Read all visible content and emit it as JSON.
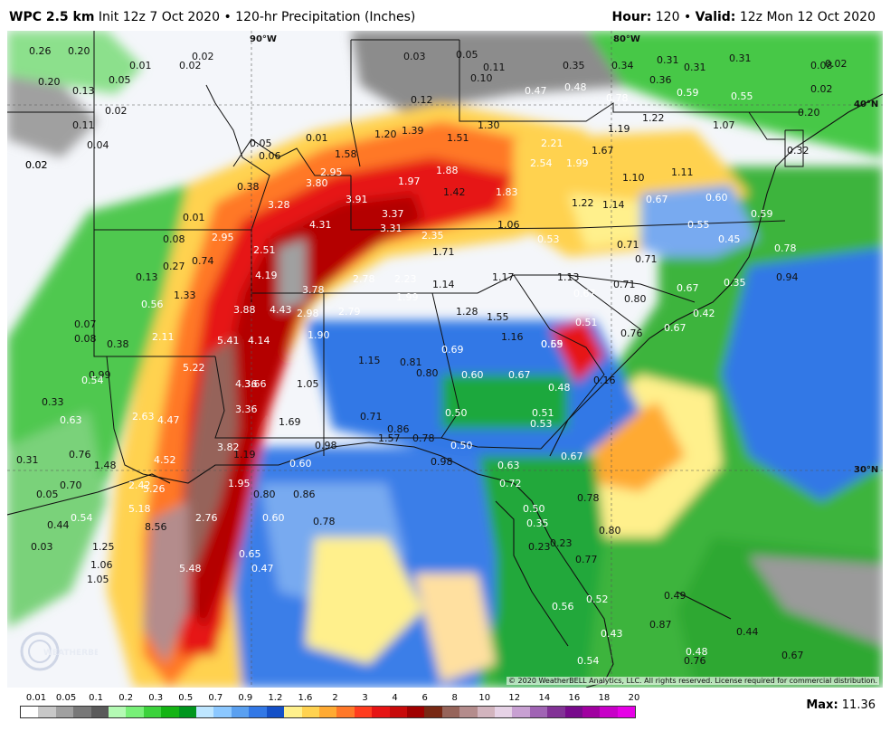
{
  "header": {
    "model": "WPC 2.5 km",
    "init": "Init 12z 7 Oct 2020",
    "product": "120-hr Precipitation (Inches)",
    "hour_label": "Hour:",
    "hour": "120",
    "valid_label": "Valid:",
    "valid": "12z Mon 12 Oct 2020"
  },
  "map": {
    "lat_lon_labels": {
      "lon90": "90°W",
      "lon80": "80°W",
      "lat40": "40°N",
      "lat30": "30°N"
    },
    "copyright": "© 2020 WeatherBELL Analytics, LLC. All rights reserved. License required for commercial distribution.",
    "logo_text": "WEATHERBELL",
    "values": [
      {
        "t": "0.26",
        "c": "k"
      },
      {
        "t": "0.20",
        "c": "k"
      },
      {
        "t": "0.01",
        "c": "k"
      },
      {
        "t": "0.02",
        "c": "k"
      },
      {
        "t": "0.02",
        "c": "k"
      },
      {
        "t": "0.20",
        "c": "k"
      },
      {
        "t": "0.13",
        "c": "k"
      },
      {
        "t": "0.05",
        "c": "k"
      },
      {
        "t": "0.03",
        "c": "k"
      },
      {
        "t": "0.05",
        "c": "k"
      },
      {
        "t": "0.11",
        "c": "k"
      },
      {
        "t": "0.10",
        "c": "k"
      },
      {
        "t": "0.35",
        "c": "k"
      },
      {
        "t": "0.34",
        "c": "k"
      },
      {
        "t": "0.31",
        "c": "k"
      },
      {
        "t": "0.31",
        "c": "k"
      },
      {
        "t": "0.31",
        "c": "k"
      },
      {
        "t": "0.08",
        "c": "k"
      },
      {
        "t": "0.02",
        "c": "k"
      },
      {
        "t": "0.02",
        "c": "k"
      },
      {
        "t": "0.11",
        "c": "k"
      },
      {
        "t": "0.04",
        "c": "k"
      },
      {
        "t": "0.02",
        "c": "k"
      },
      {
        "t": "0.12",
        "c": "k"
      },
      {
        "t": "0.47",
        "c": "w"
      },
      {
        "t": "0.48",
        "c": "w"
      },
      {
        "t": "0.78",
        "c": "w"
      },
      {
        "t": "0.36",
        "c": "k"
      },
      {
        "t": "0.59",
        "c": "w"
      },
      {
        "t": "0.55",
        "c": "w"
      },
      {
        "t": "0.20",
        "c": "k"
      },
      {
        "t": "0.02",
        "c": "k"
      },
      {
        "t": "1.30",
        "c": "k"
      },
      {
        "t": "1.22",
        "c": "k"
      },
      {
        "t": "1.07",
        "c": "k"
      },
      {
        "t": "0.01",
        "c": "k"
      },
      {
        "t": "0.05",
        "c": "k"
      },
      {
        "t": "1.20",
        "c": "k"
      },
      {
        "t": "1.39",
        "c": "k"
      },
      {
        "t": "1.51",
        "c": "k"
      },
      {
        "t": "1.19",
        "c": "k"
      },
      {
        "t": "0.32",
        "c": "k"
      },
      {
        "t": "0.06",
        "c": "k"
      },
      {
        "t": "1.58",
        "c": "k"
      },
      {
        "t": "2.21",
        "c": "w"
      },
      {
        "t": "1.67",
        "c": "k"
      },
      {
        "t": "2.54",
        "c": "w"
      },
      {
        "t": "1.99",
        "c": "w"
      },
      {
        "t": "0.02",
        "c": "k"
      },
      {
        "t": "2.95",
        "c": "w"
      },
      {
        "t": "1.88",
        "c": "w"
      },
      {
        "t": "1.11",
        "c": "k"
      },
      {
        "t": "1.10",
        "c": "k"
      },
      {
        "t": "0.38",
        "c": "k"
      },
      {
        "t": "3.80",
        "c": "w"
      },
      {
        "t": "1.97",
        "c": "w"
      },
      {
        "t": "1.42",
        "c": "k"
      },
      {
        "t": "1.83",
        "c": "w"
      },
      {
        "t": "0.67",
        "c": "w"
      },
      {
        "t": "0.60",
        "c": "w"
      },
      {
        "t": "1.22",
        "c": "k"
      },
      {
        "t": "1.14",
        "c": "k"
      },
      {
        "t": "3.28",
        "c": "w"
      },
      {
        "t": "3.91",
        "c": "w"
      },
      {
        "t": "3.37",
        "c": "w"
      },
      {
        "t": "0.59",
        "c": "w"
      },
      {
        "t": "0.01",
        "c": "k"
      },
      {
        "t": "4.31",
        "c": "w"
      },
      {
        "t": "3.31",
        "c": "w"
      },
      {
        "t": "1.06",
        "c": "k"
      },
      {
        "t": "0.55",
        "c": "w"
      },
      {
        "t": "0.08",
        "c": "k"
      },
      {
        "t": "2.95",
        "c": "w"
      },
      {
        "t": "2.35",
        "c": "w"
      },
      {
        "t": "0.53",
        "c": "w"
      },
      {
        "t": "0.45",
        "c": "w"
      },
      {
        "t": "0.71",
        "c": "k"
      },
      {
        "t": "0.61",
        "c": "w"
      },
      {
        "t": "0.78",
        "c": "w"
      },
      {
        "t": "2.51",
        "c": "w"
      },
      {
        "t": "1.71",
        "c": "k"
      },
      {
        "t": "0.71",
        "c": "k"
      },
      {
        "t": "0.27",
        "c": "k"
      },
      {
        "t": "0.74",
        "c": "k"
      },
      {
        "t": "4.19",
        "c": "w"
      },
      {
        "t": "2.78",
        "c": "w"
      },
      {
        "t": "2.23",
        "c": "w"
      },
      {
        "t": "1.17",
        "c": "k"
      },
      {
        "t": "1.13",
        "c": "k"
      },
      {
        "t": "0.94",
        "c": "k"
      },
      {
        "t": "0.13",
        "c": "k"
      },
      {
        "t": "3.78",
        "c": "w"
      },
      {
        "t": "1.14",
        "c": "k"
      },
      {
        "t": "0.71",
        "c": "k"
      },
      {
        "t": "0.35",
        "c": "w"
      },
      {
        "t": "1.33",
        "c": "k"
      },
      {
        "t": "1.99",
        "c": "w"
      },
      {
        "t": "0.67",
        "c": "w"
      },
      {
        "t": "0.80",
        "c": "k"
      },
      {
        "t": "0.67",
        "c": "w"
      },
      {
        "t": "0.56",
        "c": "w"
      },
      {
        "t": "3.88",
        "c": "w"
      },
      {
        "t": "4.43",
        "c": "w"
      },
      {
        "t": "2.98",
        "c": "w"
      },
      {
        "t": "2.79",
        "c": "w"
      },
      {
        "t": "1.28",
        "c": "k"
      },
      {
        "t": "1.55",
        "c": "k"
      },
      {
        "t": "0.42",
        "c": "w"
      },
      {
        "t": "0.07",
        "c": "k"
      },
      {
        "t": "0.51",
        "c": "w"
      },
      {
        "t": "0.67",
        "c": "w"
      },
      {
        "t": "0.08",
        "c": "k"
      },
      {
        "t": "2.11",
        "c": "w"
      },
      {
        "t": "1.90",
        "c": "w"
      },
      {
        "t": "0.76",
        "c": "k"
      },
      {
        "t": "0.38",
        "c": "k"
      },
      {
        "t": "5.41",
        "c": "w"
      },
      {
        "t": "4.14",
        "c": "w"
      },
      {
        "t": "1.16",
        "c": "k"
      },
      {
        "t": "0.69",
        "c": "w"
      },
      {
        "t": "0.69",
        "c": "w"
      },
      {
        "t": "1.15",
        "c": "k"
      },
      {
        "t": "0.81",
        "c": "k"
      },
      {
        "t": "0.55",
        "c": "w"
      },
      {
        "t": "0.99",
        "c": "k"
      },
      {
        "t": "5.22",
        "c": "w"
      },
      {
        "t": "0.80",
        "c": "k"
      },
      {
        "t": "0.60",
        "c": "w"
      },
      {
        "t": "0.67",
        "c": "w"
      },
      {
        "t": "0.54",
        "c": "w"
      },
      {
        "t": "4.36",
        "c": "w"
      },
      {
        "t": "3.66",
        "c": "w"
      },
      {
        "t": "1.05",
        "c": "k"
      },
      {
        "t": "0.48",
        "c": "w"
      },
      {
        "t": "0.16",
        "c": "k"
      },
      {
        "t": "0.33",
        "c": "k"
      },
      {
        "t": "3.36",
        "c": "w"
      },
      {
        "t": "0.50",
        "c": "w"
      },
      {
        "t": "0.51",
        "c": "w"
      },
      {
        "t": "0.63",
        "c": "w"
      },
      {
        "t": "2.63",
        "c": "w"
      },
      {
        "t": "4.47",
        "c": "w"
      },
      {
        "t": "1.69",
        "c": "k"
      },
      {
        "t": "0.71",
        "c": "k"
      },
      {
        "t": "0.53",
        "c": "w"
      },
      {
        "t": "0.86",
        "c": "k"
      },
      {
        "t": "1.57",
        "c": "k"
      },
      {
        "t": "0.78",
        "c": "k"
      },
      {
        "t": "3.82",
        "c": "w"
      },
      {
        "t": "0.76",
        "c": "k"
      },
      {
        "t": "1.19",
        "c": "k"
      },
      {
        "t": "0.98",
        "c": "k"
      },
      {
        "t": "0.50",
        "c": "w"
      },
      {
        "t": "0.67",
        "c": "w"
      },
      {
        "t": "0.31",
        "c": "k"
      },
      {
        "t": "4.52",
        "c": "w"
      },
      {
        "t": "1.48",
        "c": "k"
      },
      {
        "t": "0.60",
        "c": "w"
      },
      {
        "t": "0.98",
        "c": "k"
      },
      {
        "t": "0.63",
        "c": "w"
      },
      {
        "t": "0.70",
        "c": "k"
      },
      {
        "t": "2.42",
        "c": "w"
      },
      {
        "t": "5.26",
        "c": "w"
      },
      {
        "t": "1.95",
        "c": "w"
      },
      {
        "t": "0.72",
        "c": "w"
      },
      {
        "t": "0.05",
        "c": "k"
      },
      {
        "t": "0.80",
        "c": "k"
      },
      {
        "t": "0.86",
        "c": "k"
      },
      {
        "t": "0.78",
        "c": "k"
      },
      {
        "t": "5.18",
        "c": "w"
      },
      {
        "t": "0.50",
        "c": "w"
      },
      {
        "t": "0.44",
        "c": "k"
      },
      {
        "t": "0.54",
        "c": "w"
      },
      {
        "t": "2.76",
        "c": "w"
      },
      {
        "t": "0.60",
        "c": "w"
      },
      {
        "t": "0.78",
        "c": "k"
      },
      {
        "t": "0.35",
        "c": "w"
      },
      {
        "t": "8.56",
        "c": "k"
      },
      {
        "t": "0.80",
        "c": "k"
      },
      {
        "t": "0.03",
        "c": "k"
      },
      {
        "t": "1.25",
        "c": "k"
      },
      {
        "t": "0.23",
        "c": "k"
      },
      {
        "t": "0.23",
        "c": "k"
      },
      {
        "t": "0.65",
        "c": "w"
      },
      {
        "t": "1.06",
        "c": "k"
      },
      {
        "t": "0.47",
        "c": "w"
      },
      {
        "t": "0.77",
        "c": "k"
      },
      {
        "t": "5.48",
        "c": "w"
      },
      {
        "t": "1.05",
        "c": "k"
      },
      {
        "t": "0.52",
        "c": "w"
      },
      {
        "t": "0.56",
        "c": "w"
      },
      {
        "t": "0.49",
        "c": "k"
      },
      {
        "t": "0.87",
        "c": "k"
      },
      {
        "t": "0.44",
        "c": "k"
      },
      {
        "t": "0.43",
        "c": "w"
      },
      {
        "t": "0.48",
        "c": "w"
      },
      {
        "t": "0.67",
        "c": "k"
      },
      {
        "t": "0.54",
        "c": "w"
      },
      {
        "t": "0.76",
        "c": "k"
      }
    ]
  },
  "legend": {
    "ticks": [
      "0.01",
      "0.05",
      "0.1",
      "0.2",
      "0.3",
      "0.5",
      "0.7",
      "0.9",
      "1.2",
      "1.6",
      "2",
      "3",
      "4",
      "6",
      "8",
      "10",
      "12",
      "14",
      "16",
      "18",
      "20"
    ],
    "colors": [
      "#ffffff",
      "#c8c8c8",
      "#a0a0a0",
      "#787878",
      "#5a5a5a",
      "#b4fab4",
      "#78f078",
      "#3cd23c",
      "#14b414",
      "#00961e",
      "#bee6ff",
      "#8cc8ff",
      "#5aa0f0",
      "#3278e6",
      "#1450c8",
      "#fff08c",
      "#ffd250",
      "#ffaa32",
      "#ff7828",
      "#ff3c1e",
      "#e61414",
      "#c80a0a",
      "#a00000",
      "#782814",
      "#96645a",
      "#b48c8c",
      "#d2b4be",
      "#e6d2e6",
      "#c8a0d2",
      "#a064b4",
      "#823296",
      "#780a8c",
      "#a000a0",
      "#c800c8",
      "#e600e6"
    ],
    "max_label": "Max:",
    "max_value": "11.36"
  }
}
